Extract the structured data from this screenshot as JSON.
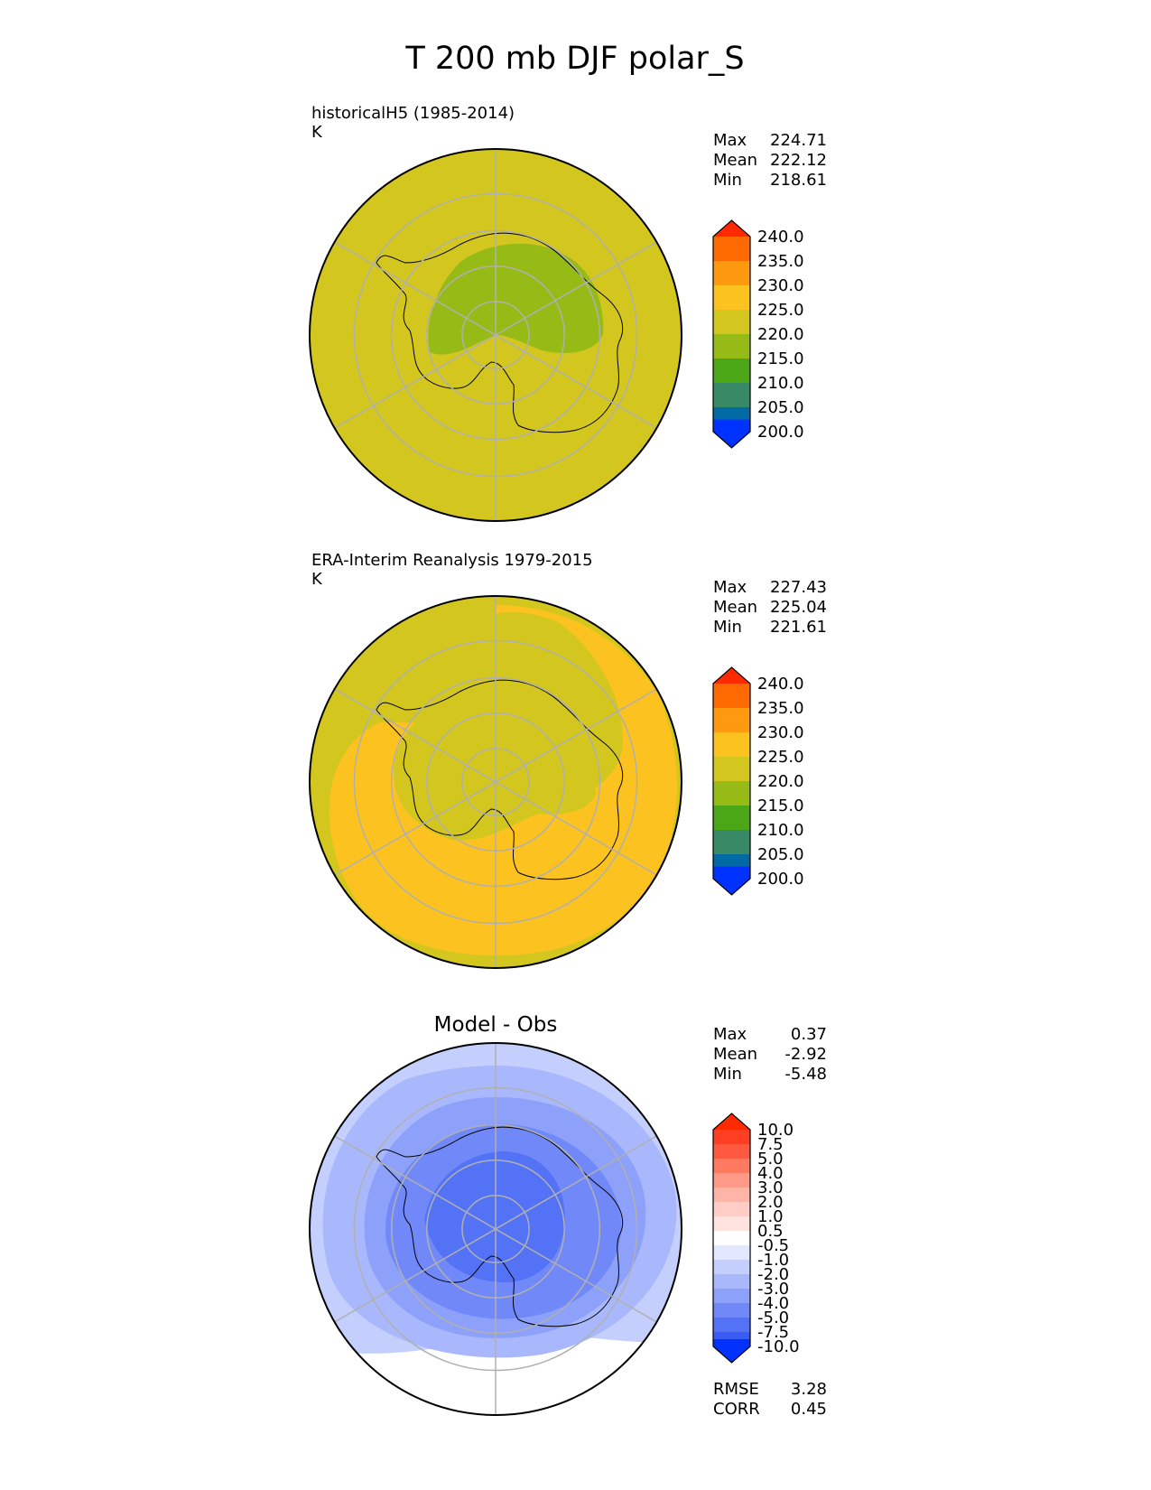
{
  "figure": {
    "title": "T 200 mb DJF polar_S"
  },
  "colors": {
    "coastline": "#000000",
    "grid": "#b0b0b0",
    "border": "#000000"
  },
  "chart_data": [
    {
      "type": "heatmap",
      "id": "model",
      "subtitle": "historicalH5 (1985-2014)",
      "units": "K",
      "projection": "south polar stereographic",
      "stats": [
        {
          "label": "Max",
          "value": "224.71"
        },
        {
          "label": "Mean",
          "value": "222.12"
        },
        {
          "label": "Min",
          "value": "218.61"
        }
      ],
      "colorbar": {
        "ticks": [
          "240.0",
          "235.0",
          "230.0",
          "225.0",
          "220.0",
          "215.0",
          "210.0",
          "205.0",
          "200.0"
        ],
        "colors_top_to_bottom": [
          "#ff2a00",
          "#ff6a00",
          "#ff9a10",
          "#fcc220",
          "#d2c61f",
          "#96ba16",
          "#4ba716",
          "#388a66",
          "#006aa4",
          "#0032ff"
        ],
        "extend": "both"
      },
      "field": {
        "background": "#d2c61f",
        "regions": [
          {
            "level": "215-220",
            "color": "#96ba16",
            "description": "cold core over East Antarctica"
          }
        ]
      }
    },
    {
      "type": "heatmap",
      "id": "obs",
      "subtitle": "ERA-Interim Reanalysis 1979-2015",
      "units": "K",
      "projection": "south polar stereographic",
      "stats": [
        {
          "label": "Max",
          "value": "227.43"
        },
        {
          "label": "Mean",
          "value": "225.04"
        },
        {
          "label": "Min",
          "value": "221.61"
        }
      ],
      "colorbar": {
        "ticks": [
          "240.0",
          "235.0",
          "230.0",
          "225.0",
          "220.0",
          "215.0",
          "210.0",
          "205.0",
          "200.0"
        ],
        "colors_top_to_bottom": [
          "#ff2a00",
          "#ff6a00",
          "#ff9a10",
          "#fcc220",
          "#d2c61f",
          "#96ba16",
          "#4ba716",
          "#388a66",
          "#006aa4",
          "#0032ff"
        ],
        "extend": "both"
      },
      "field": {
        "background": "#d2c61f",
        "regions": [
          {
            "level": "225-230",
            "color": "#fcc220",
            "description": "warm ring around the continent"
          }
        ]
      }
    },
    {
      "type": "heatmap",
      "id": "diff",
      "title": "Model - Obs",
      "projection": "south polar stereographic",
      "stats": [
        {
          "label": "Max",
          "value": "0.37"
        },
        {
          "label": "Mean",
          "value": "-2.92"
        },
        {
          "label": "Min",
          "value": "-5.48"
        }
      ],
      "colorbar": {
        "ticks": [
          "10.0",
          "7.5",
          "5.0",
          "4.0",
          "3.0",
          "2.0",
          "1.0",
          "0.5",
          "-0.5",
          "-1.0",
          "-2.0",
          "-3.0",
          "-4.0",
          "-5.0",
          "-7.5",
          "-10.0"
        ],
        "colors_top_to_bottom": [
          "#ff2a00",
          "#ff3e22",
          "#ff5a40",
          "#ff7a60",
          "#ff9a88",
          "#ffb4a8",
          "#ffcdc6",
          "#ffe3de",
          "#ffffff",
          "#e2e8ff",
          "#c4cffe",
          "#a9b8fc",
          "#8da0fa",
          "#7189f8",
          "#5472f6",
          "#3a5cf5",
          "#0032ff"
        ],
        "extend": "both"
      },
      "field": {
        "background": "#ffffff",
        "regions": [
          {
            "level": "-1.0 to -2.0",
            "color": "#c4cffe"
          },
          {
            "level": "-2.0 to -3.0",
            "color": "#a9b8fc"
          },
          {
            "level": "-3.0 to -4.0",
            "color": "#8da0fa"
          },
          {
            "level": "-4.0 to -5.0",
            "color": "#7189f8"
          },
          {
            "level": "-5.0 to -7.5",
            "color": "#5472f6"
          }
        ]
      },
      "metrics": [
        {
          "label": "RMSE",
          "value": "3.28"
        },
        {
          "label": "CORR",
          "value": "0.45"
        }
      ]
    }
  ]
}
